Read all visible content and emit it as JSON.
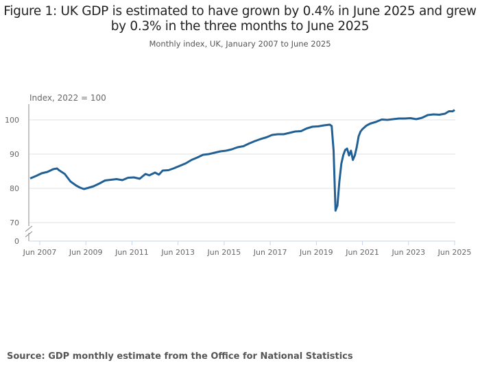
{
  "chart_data": {
    "type": "line",
    "title": "Figure 1: UK GDP is estimated to have grown by 0.4% in June 2025 and grew by 0.3% in the three months to June 2025",
    "subtitle": "Monthly index, UK, January 2007 to June 2025",
    "ylabel": "Index, 2022 = 100",
    "ylim": [
      70,
      105
    ],
    "y_break": true,
    "yticks": [
      "100",
      "90",
      "80",
      "70",
      "0"
    ],
    "xticks": [
      "Jun 2007",
      "Jun 2009",
      "Jun 2011",
      "Jun 2013",
      "Jun 2015",
      "Jun 2017",
      "Jun 2019",
      "Jun 2021",
      "Jun 2023",
      "Jun 2025"
    ],
    "grid": true,
    "color": "#206095",
    "x": [
      "2007-01",
      "2007-04",
      "2007-07",
      "2007-10",
      "2008-01",
      "2008-03",
      "2008-04",
      "2008-07",
      "2008-10",
      "2009-01",
      "2009-03",
      "2009-05",
      "2009-07",
      "2009-10",
      "2010-01",
      "2010-04",
      "2010-07",
      "2010-10",
      "2011-01",
      "2011-04",
      "2011-07",
      "2011-10",
      "2012-01",
      "2012-03",
      "2012-06",
      "2012-08",
      "2012-10",
      "2013-01",
      "2013-04",
      "2013-07",
      "2013-10",
      "2014-01",
      "2014-04",
      "2014-07",
      "2014-10",
      "2015-01",
      "2015-04",
      "2015-07",
      "2015-10",
      "2016-01",
      "2016-04",
      "2016-07",
      "2016-10",
      "2017-01",
      "2017-04",
      "2017-07",
      "2017-10",
      "2018-01",
      "2018-04",
      "2018-07",
      "2018-10",
      "2019-01",
      "2019-04",
      "2019-07",
      "2019-10",
      "2020-01",
      "2020-02",
      "2020-03",
      "2020-04",
      "2020-05",
      "2020-06",
      "2020-07",
      "2020-08",
      "2020-09",
      "2020-10",
      "2020-11",
      "2020-12",
      "2021-01",
      "2021-02",
      "2021-03",
      "2021-04",
      "2021-05",
      "2021-06",
      "2021-08",
      "2021-10",
      "2022-01",
      "2022-04",
      "2022-07",
      "2022-10",
      "2023-01",
      "2023-04",
      "2023-07",
      "2023-10",
      "2024-01",
      "2024-04",
      "2024-07",
      "2024-10",
      "2025-01",
      "2025-03",
      "2025-05",
      "2025-06"
    ],
    "values": [
      82.9,
      83.6,
      84.4,
      84.8,
      85.6,
      85.8,
      85.3,
      84.2,
      82.0,
      80.8,
      80.2,
      79.8,
      80.1,
      80.6,
      81.4,
      82.3,
      82.5,
      82.7,
      82.4,
      83.1,
      83.2,
      82.8,
      84.2,
      83.8,
      84.6,
      84.0,
      85.2,
      85.3,
      85.9,
      86.6,
      87.3,
      88.3,
      89.0,
      89.8,
      90.0,
      90.4,
      90.8,
      91.0,
      91.4,
      92.0,
      92.3,
      93.1,
      93.8,
      94.4,
      94.9,
      95.6,
      95.8,
      95.8,
      96.2,
      96.6,
      96.7,
      97.5,
      98.0,
      98.1,
      98.4,
      98.6,
      98.2,
      91.0,
      73.5,
      75.0,
      82.0,
      87.2,
      89.7,
      91.2,
      91.6,
      89.6,
      91.0,
      88.3,
      89.6,
      92.0,
      95.2,
      96.6,
      97.3,
      98.3,
      98.9,
      99.4,
      100.1,
      100.0,
      100.2,
      100.4,
      100.4,
      100.5,
      100.2,
      100.6,
      101.4,
      101.6,
      101.5,
      101.8,
      102.5,
      102.5,
      102.9
    ]
  },
  "source": "Source: GDP monthly estimate from the Office for National Statistics"
}
